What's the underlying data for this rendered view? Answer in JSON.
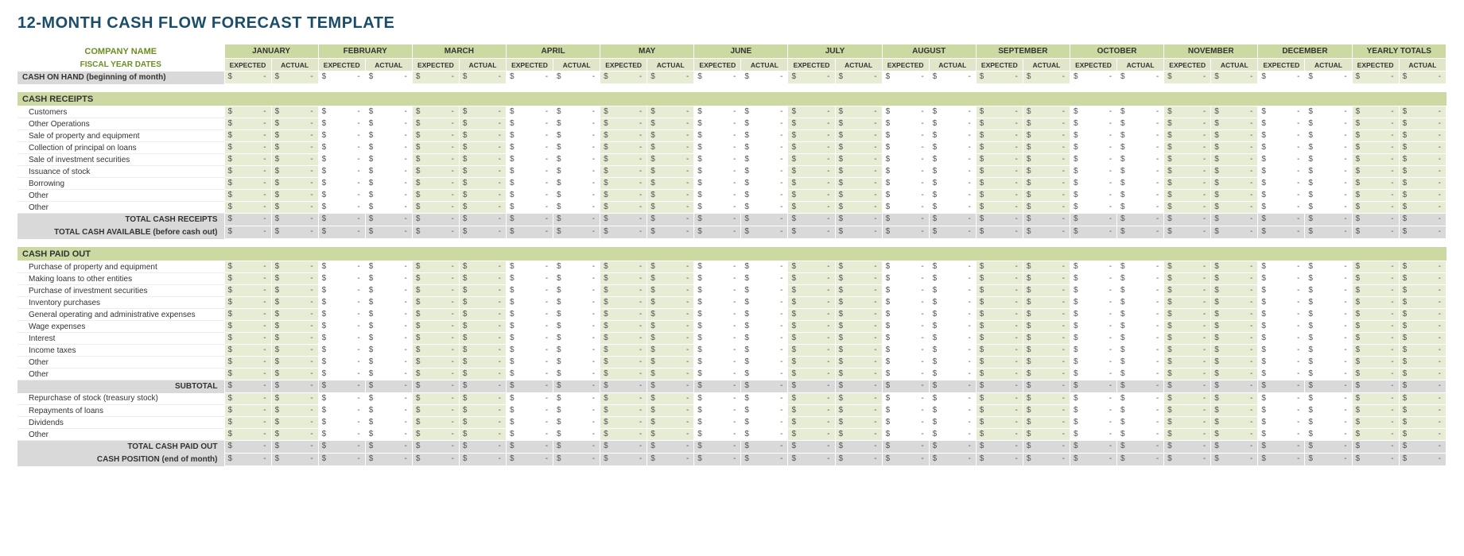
{
  "title": "12-MONTH CASH FLOW FORECAST TEMPLATE",
  "company_label": "COMPANY NAME",
  "fiscal_label": "FISCAL YEAR DATES",
  "months": [
    "JANUARY",
    "FEBRUARY",
    "MARCH",
    "APRIL",
    "MAY",
    "JUNE",
    "JULY",
    "AUGUST",
    "SEPTEMBER",
    "OCTOBER",
    "NOVEMBER",
    "DECEMBER",
    "YEARLY TOTALS"
  ],
  "sub_headers": [
    "EXPECTED",
    "ACTUAL"
  ],
  "cash_on_hand": "CASH ON HAND (beginning of month)",
  "sections": [
    {
      "title": "CASH RECEIPTS",
      "rows": [
        "Customers",
        "Other Operations",
        "Sale of property and equipment",
        "Collection of principal on loans",
        "Sale of investment securities",
        "Issuance of stock",
        "Borrowing",
        "Other",
        "Other"
      ],
      "totals": [
        "TOTAL CASH RECEIPTS",
        "TOTAL CASH AVAILABLE (before cash out)"
      ]
    },
    {
      "title": "CASH PAID OUT",
      "rows": [
        "Purchase of property and equipment",
        "Making loans to other entities",
        "Purchase of investment securities",
        "Inventory purchases",
        "General operating and administrative expenses",
        "Wage expenses",
        "Interest",
        "Income taxes",
        "Other",
        "Other"
      ],
      "mid_totals": [
        "SUBTOTAL"
      ],
      "rows2": [
        "Repurchase of stock (treasury stock)",
        "Repayments of loans",
        "Dividends",
        "Other"
      ],
      "totals": [
        "TOTAL CASH PAID OUT",
        "CASH POSITION (end of month)"
      ]
    }
  ],
  "colors": {
    "title": "#1a4d6b",
    "olive": "#6b8e23",
    "month_bg": "#cdd9a3",
    "sub_bg": "#e1e6ca",
    "cell_bg": "#e7ecd4",
    "grey": "#d9d9d9"
  }
}
